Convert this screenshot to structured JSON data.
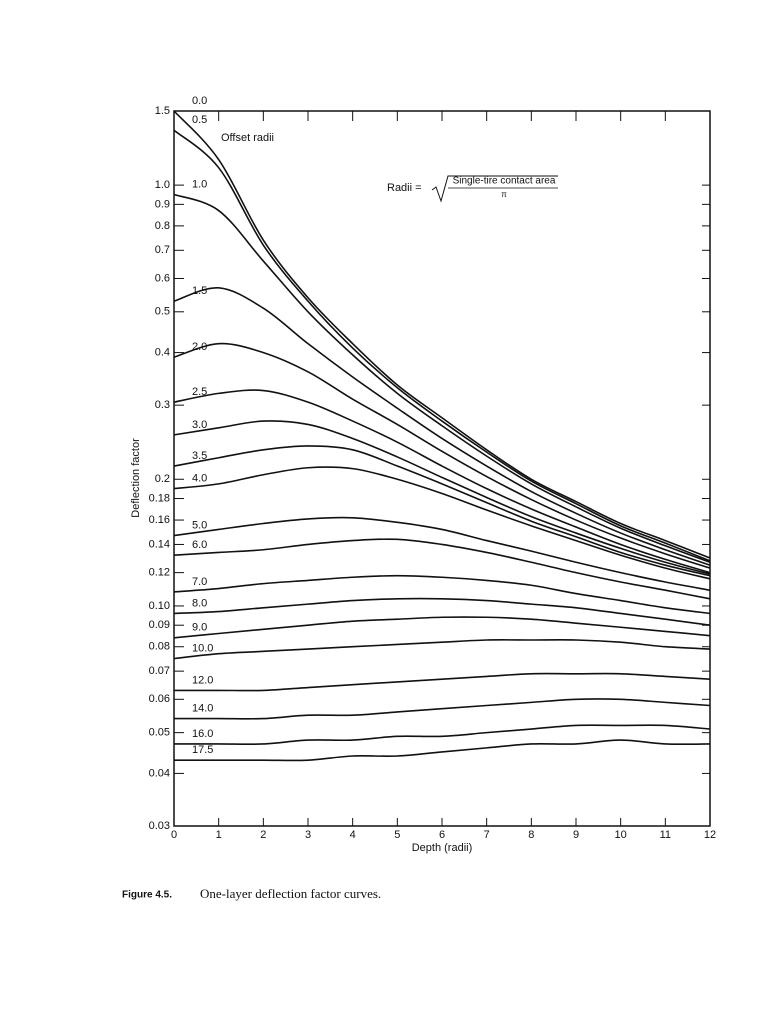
{
  "chart_data": {
    "type": "line",
    "ylog": true,
    "grid": false,
    "color": "#111111",
    "x_label": "Depth (radii)",
    "y_label": "Deflection factor",
    "annotation": "Offset radii",
    "formula": {
      "lhs": "Radii =",
      "numerator": "Single-tire contact area",
      "denominator": "π"
    },
    "caption_label": "Figure 4.5.",
    "caption": "One-layer deflection factor curves.",
    "xlim": [
      0,
      12
    ],
    "xticks": [
      0,
      1,
      2,
      3,
      4,
      5,
      6,
      7,
      8,
      9,
      10,
      11,
      12
    ],
    "ylim": [
      0.03,
      1.5
    ],
    "yticks": [
      0.03,
      0.04,
      0.05,
      0.06,
      0.07,
      0.08,
      0.09,
      {
        "value": 0.1,
        "label": "0.10"
      },
      0.12,
      0.14,
      0.16,
      0.18,
      0.2,
      0.3,
      0.4,
      0.5,
      0.6,
      0.7,
      0.8,
      0.9,
      {
        "value": 1,
        "label": "1.0"
      },
      1.5
    ],
    "x": [
      0,
      1,
      2,
      3,
      4,
      5,
      6,
      7,
      8,
      9,
      10,
      11,
      12
    ],
    "series": [
      {
        "name": "0.0",
        "values": [
          1.5,
          1.15,
          0.74,
          0.54,
          0.42,
          0.335,
          0.28,
          0.235,
          0.2,
          0.177,
          0.157,
          0.143,
          0.13
        ]
      },
      {
        "name": "0.5",
        "values": [
          1.35,
          1.1,
          0.72,
          0.53,
          0.41,
          0.33,
          0.275,
          0.232,
          0.198,
          0.175,
          0.155,
          0.141,
          0.128
        ]
      },
      {
        "name": "1.0",
        "values": [
          0.95,
          0.87,
          0.66,
          0.5,
          0.395,
          0.32,
          0.268,
          0.227,
          0.195,
          0.172,
          0.153,
          0.139,
          0.127
        ]
      },
      {
        "name": "1.5",
        "values": [
          0.53,
          0.57,
          0.51,
          0.42,
          0.35,
          0.295,
          0.25,
          0.215,
          0.187,
          0.166,
          0.149,
          0.136,
          0.125
        ]
      },
      {
        "name": "2.0",
        "values": [
          0.39,
          0.42,
          0.4,
          0.36,
          0.31,
          0.27,
          0.233,
          0.203,
          0.179,
          0.16,
          0.145,
          0.133,
          0.123
        ]
      },
      {
        "name": "2.5",
        "values": [
          0.305,
          0.32,
          0.325,
          0.305,
          0.275,
          0.245,
          0.215,
          0.19,
          0.17,
          0.154,
          0.14,
          0.129,
          0.12
        ]
      },
      {
        "name": "3.0",
        "values": [
          0.255,
          0.265,
          0.275,
          0.27,
          0.25,
          0.226,
          0.202,
          0.181,
          0.163,
          0.149,
          0.137,
          0.127,
          0.119
        ]
      },
      {
        "name": "3.5",
        "values": [
          0.215,
          0.225,
          0.235,
          0.24,
          0.235,
          0.215,
          0.195,
          0.176,
          0.159,
          0.146,
          0.134,
          0.125,
          0.118
        ]
      },
      {
        "name": "4.0",
        "values": [
          0.19,
          0.195,
          0.205,
          0.213,
          0.212,
          0.2,
          0.185,
          0.169,
          0.155,
          0.143,
          0.132,
          0.123,
          0.116
        ]
      },
      {
        "name": "5.0",
        "values": [
          0.147,
          0.152,
          0.157,
          0.161,
          0.162,
          0.158,
          0.152,
          0.143,
          0.135,
          0.127,
          0.12,
          0.114,
          0.109
        ]
      },
      {
        "name": "6.0",
        "values": [
          0.132,
          0.134,
          0.136,
          0.14,
          0.143,
          0.144,
          0.14,
          0.134,
          0.127,
          0.12,
          0.114,
          0.109,
          0.104
        ]
      },
      {
        "name": "7.0",
        "values": [
          0.108,
          0.11,
          0.113,
          0.115,
          0.117,
          0.118,
          0.117,
          0.115,
          0.112,
          0.107,
          0.103,
          0.099,
          0.096
        ]
      },
      {
        "name": "8.0",
        "values": [
          0.096,
          0.097,
          0.099,
          0.101,
          0.103,
          0.104,
          0.104,
          0.103,
          0.101,
          0.099,
          0.096,
          0.093,
          0.09
        ]
      },
      {
        "name": "9.0",
        "values": [
          0.084,
          0.086,
          0.088,
          0.09,
          0.092,
          0.093,
          0.094,
          0.094,
          0.093,
          0.091,
          0.089,
          0.087,
          0.085
        ]
      },
      {
        "name": "10.0",
        "values": [
          0.075,
          0.077,
          0.078,
          0.079,
          0.08,
          0.081,
          0.082,
          0.083,
          0.083,
          0.083,
          0.082,
          0.08,
          0.079
        ]
      },
      {
        "name": "12.0",
        "values": [
          0.063,
          0.063,
          0.063,
          0.064,
          0.065,
          0.066,
          0.067,
          0.068,
          0.069,
          0.069,
          0.069,
          0.068,
          0.067
        ]
      },
      {
        "name": "14.0",
        "values": [
          0.054,
          0.054,
          0.054,
          0.055,
          0.055,
          0.056,
          0.057,
          0.058,
          0.059,
          0.06,
          0.06,
          0.059,
          0.058
        ]
      },
      {
        "name": "16.0",
        "values": [
          0.047,
          0.047,
          0.047,
          0.048,
          0.048,
          0.049,
          0.049,
          0.05,
          0.051,
          0.052,
          0.052,
          0.052,
          0.051
        ]
      },
      {
        "name": "17.5",
        "values": [
          0.043,
          0.043,
          0.043,
          0.043,
          0.044,
          0.044,
          0.045,
          0.046,
          0.047,
          0.047,
          0.048,
          0.047,
          0.047
        ]
      }
    ]
  }
}
